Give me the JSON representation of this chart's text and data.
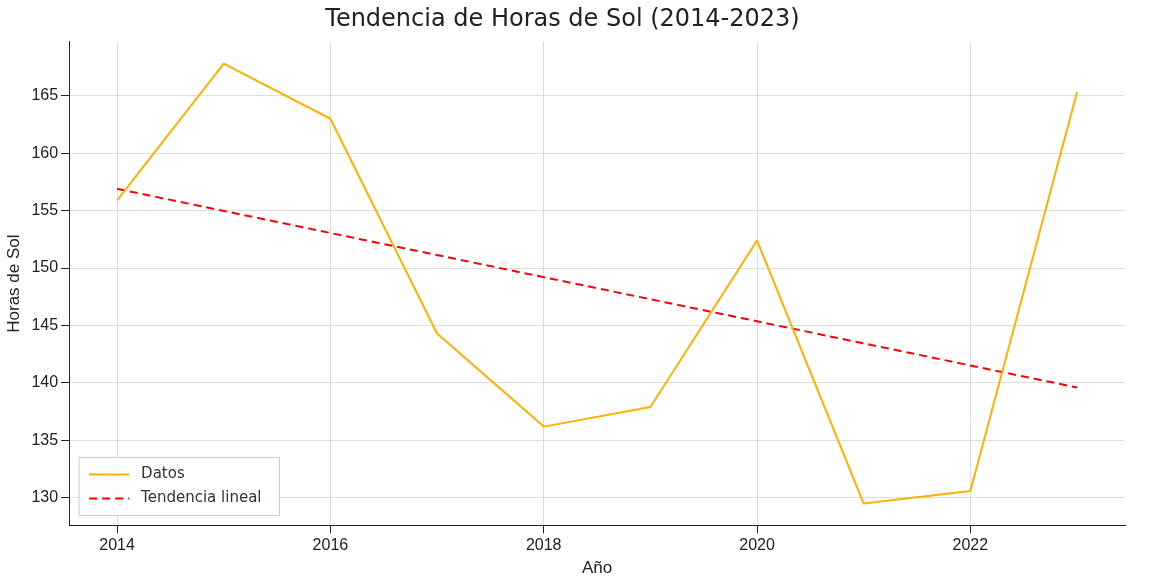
{
  "chart_data": {
    "type": "line",
    "title": "Tendencia de Horas de Sol (2014-2023)",
    "xlabel": "Año",
    "ylabel": "Horas de Sol",
    "x": [
      2014,
      2015,
      2016,
      2017,
      2018,
      2019,
      2020,
      2021,
      2022,
      2023
    ],
    "series": [
      {
        "name": "Datos",
        "color": "#ffb000",
        "values": [
          155.9,
          167.8,
          163.0,
          144.3,
          136.2,
          137.9,
          152.4,
          129.5,
          130.6,
          165.3
        ]
      },
      {
        "name": "Tendencia lineal",
        "color": "#ff0000",
        "type": "line",
        "line_style": "dashed",
        "x": [
          2014,
          2023
        ],
        "values": [
          156.9,
          139.6
        ]
      }
    ],
    "xlim": [
      2013.55,
      2023.45
    ],
    "xticks": [
      2014,
      2016,
      2018,
      2020,
      2022
    ],
    "ylim": [
      127.6,
      169.7
    ],
    "yticks": [
      130,
      135,
      140,
      145,
      150,
      155,
      160,
      165
    ],
    "grid": true,
    "legend": "bottom left",
    "marker": "none"
  }
}
